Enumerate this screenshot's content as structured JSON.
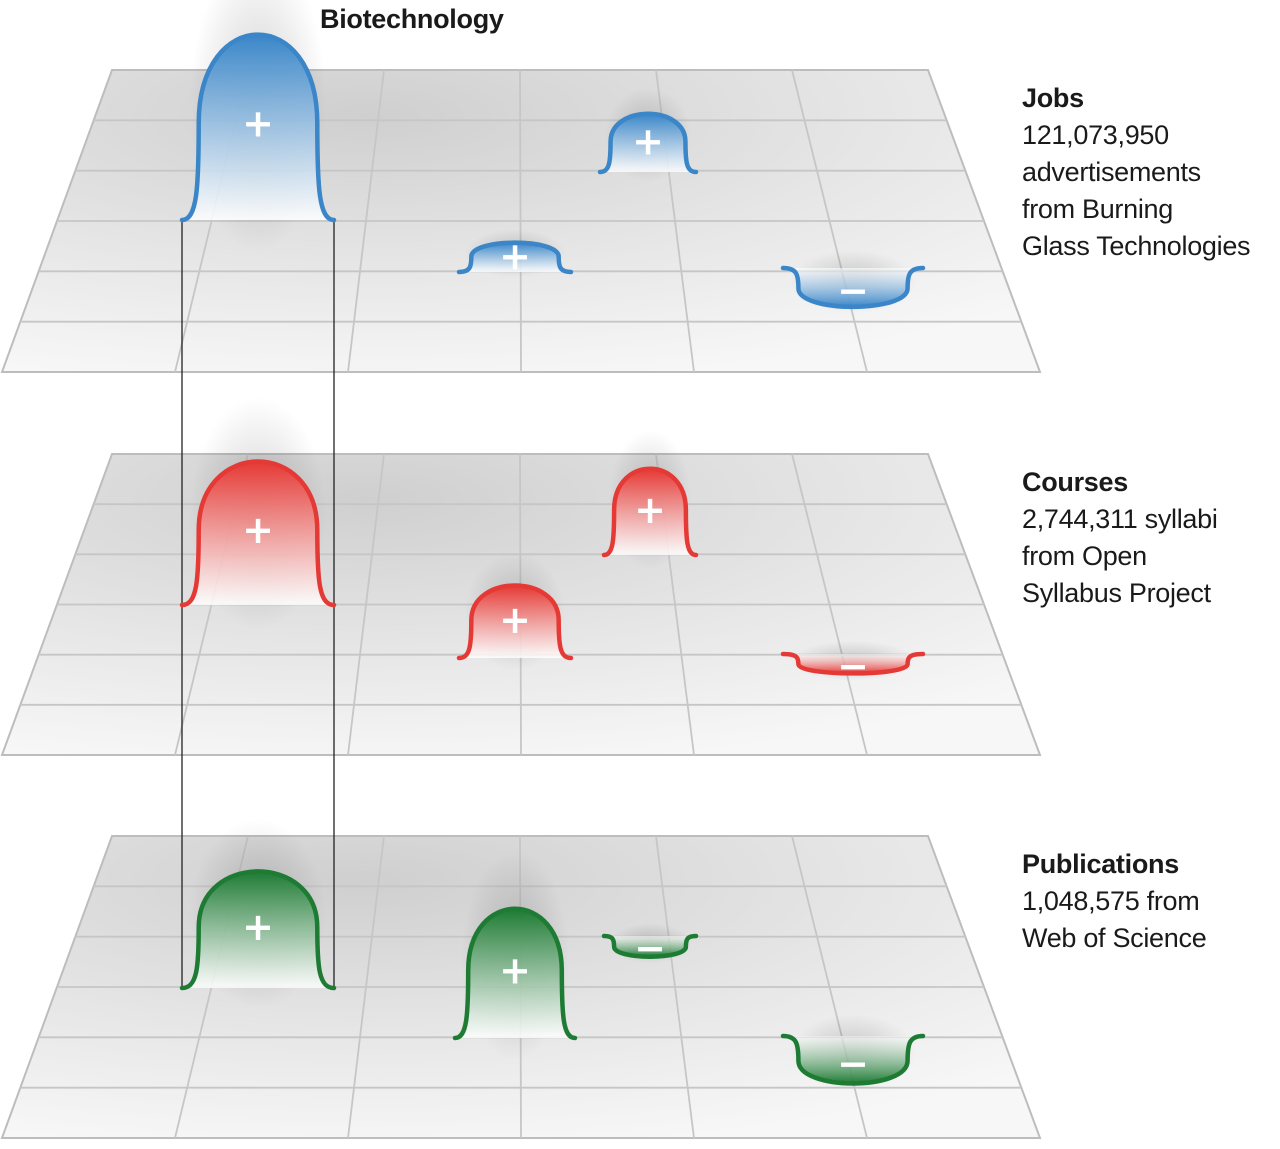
{
  "highlight": {
    "label": "Biotechnology"
  },
  "layers": [
    {
      "id": "jobs",
      "name": "Jobs",
      "description": "121,073,950\nadvertisements\nfrom Burning\nGlass Technologies",
      "color": "#3a86c8",
      "bumps": [
        {
          "sign": "+",
          "height": 1.0,
          "width": 1.0
        },
        {
          "sign": "+",
          "height": 0.45,
          "width": 0.55
        },
        {
          "sign": "+",
          "height": 0.2,
          "width": 0.65
        },
        {
          "sign": "-",
          "height": 0.3,
          "width": 0.8
        }
      ]
    },
    {
      "id": "courses",
      "name": "Courses",
      "description": "2,744,311 syllabi\nfrom Open\nSyllabus Project",
      "color": "#e53935",
      "bumps": [
        {
          "sign": "+",
          "height": 0.8,
          "width": 1.0
        },
        {
          "sign": "+",
          "height": 0.5,
          "width": 0.55
        },
        {
          "sign": "+",
          "height": 0.42,
          "width": 0.65
        },
        {
          "sign": "-",
          "height": 0.15,
          "width": 0.8
        }
      ]
    },
    {
      "id": "publications",
      "name": "Publications",
      "description": "1,048,575 from\nWeb of Science",
      "color": "#1e7b34",
      "bumps": [
        {
          "sign": "+",
          "height": 0.65,
          "width": 1.0
        },
        {
          "sign": "+",
          "height": 0.7,
          "width": 0.65
        },
        {
          "sign": "-",
          "height": 0.12,
          "width": 0.55
        },
        {
          "sign": "-",
          "height": 0.25,
          "width": 0.8
        }
      ]
    }
  ]
}
